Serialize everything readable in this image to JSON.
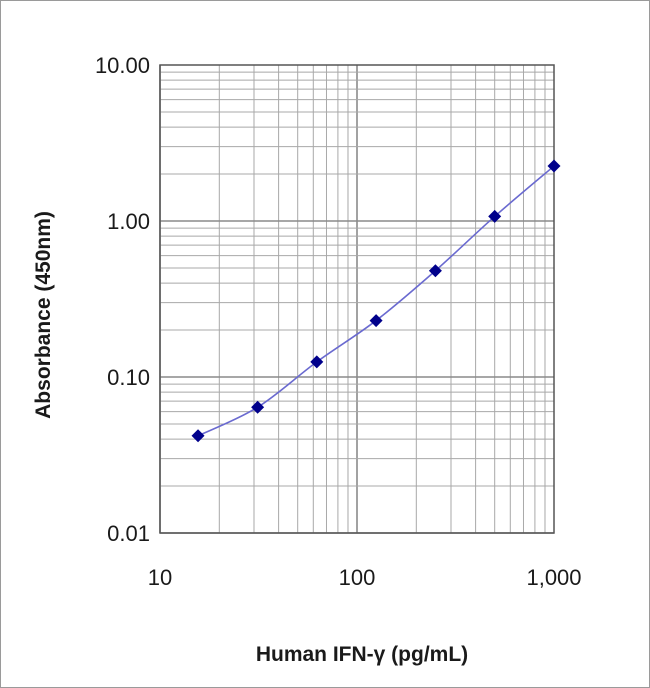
{
  "chart_data": {
    "type": "scatter",
    "xlabel": "Human IFN-γ (pg/mL)",
    "ylabel": "Absorbance (450nm)",
    "xscale": "log",
    "yscale": "log",
    "xlim": [
      10,
      1000
    ],
    "ylim": [
      0.01,
      10
    ],
    "x_ticks": [
      "10",
      "100",
      "1,000"
    ],
    "y_ticks": [
      "10.00",
      "1.00",
      "0.10",
      "0.01"
    ],
    "grid": true,
    "legend": "none",
    "series": [
      {
        "x": [
          15.6,
          31.3,
          62.5,
          125,
          250,
          500,
          1000
        ],
        "y": [
          0.042,
          0.064,
          0.125,
          0.23,
          0.48,
          1.07,
          2.25
        ],
        "marker": "diamond",
        "line": "smooth",
        "color": "#00008b",
        "line_color": "#6a6ad0"
      }
    ]
  }
}
